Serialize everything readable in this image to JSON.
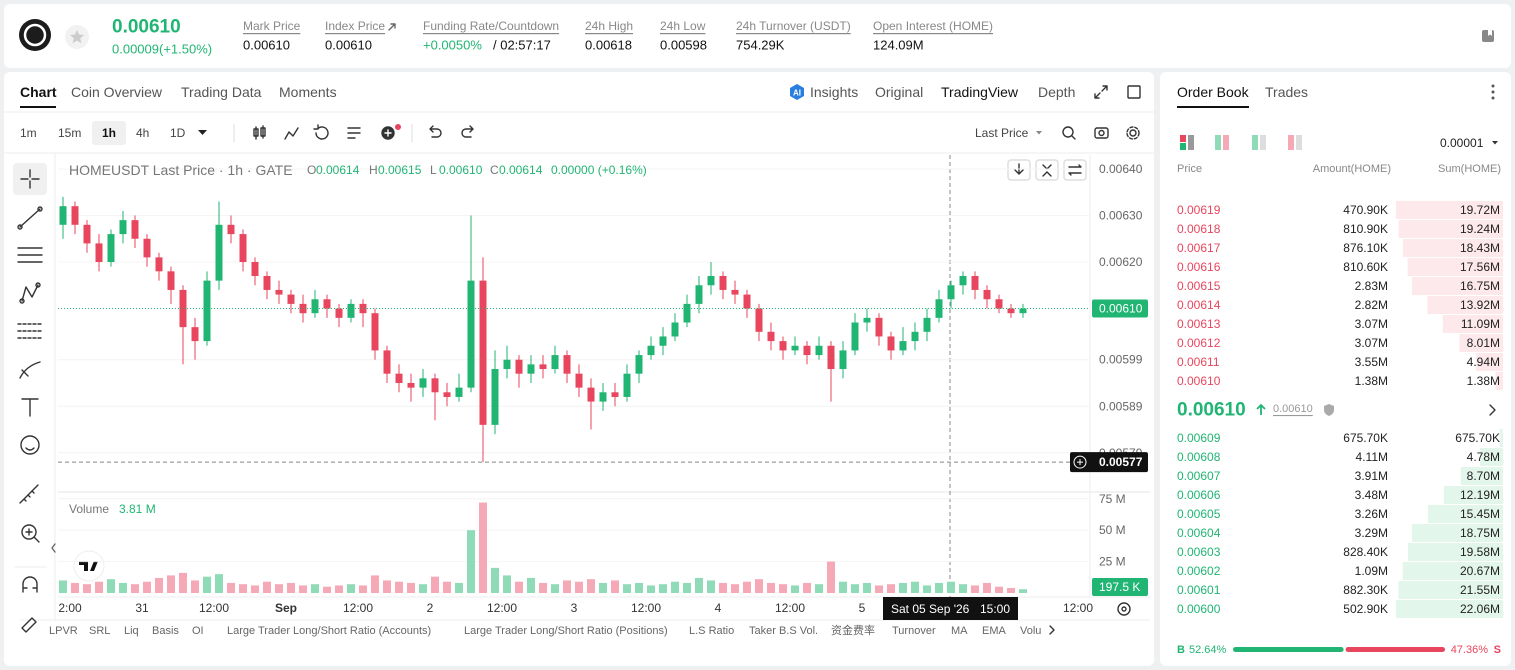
{
  "header": {
    "price": "0.00610",
    "change": "0.00009(+1.50%)",
    "stats": [
      {
        "label": "Mark Price",
        "value": "0.00610"
      },
      {
        "label": "Index Price",
        "value": "0.00610"
      },
      {
        "label": "Funding Rate/Countdown",
        "value": "+0.0050%",
        "countdown": "/ 02:57:17"
      },
      {
        "label": "24h High",
        "value": "0.00618"
      },
      {
        "label": "24h Low",
        "value": "0.00598"
      },
      {
        "label": "24h Turnover (USDT)",
        "value": "754.29K"
      },
      {
        "label": "Open Interest (HOME)",
        "value": "124.09M"
      }
    ]
  },
  "chart_tabs": [
    "Chart",
    "Coin Overview",
    "Trading Data",
    "Moments"
  ],
  "view_tabs": [
    "Insights",
    "Original",
    "TradingView",
    "Depth"
  ],
  "intervals": [
    "1m",
    "15m",
    "1h",
    "4h",
    "1D"
  ],
  "price_source": "Last Price",
  "chart_legend": {
    "title": "HOMEUSDT Last Price · 1h · GATE",
    "items": [
      {
        "key": "O",
        "value": "0.00614"
      },
      {
        "key": "H",
        "value": "0.00615"
      },
      {
        "key": "L",
        "value": "0.00610"
      },
      {
        "key": "C",
        "value": "0.00614"
      }
    ],
    "change": "0.00000 (+0.16%)"
  },
  "chart_data": {
    "type": "candlestick",
    "up_color": "#21b573",
    "down_color": "#e8465e",
    "volume_up_color": "#8fdbb8",
    "volume_down_color": "#f5a9b6",
    "ylim": [
      0.00571,
      0.00643
    ],
    "yticks": [
      {
        "value": 0.0064,
        "label": "0.00640"
      },
      {
        "value": 0.0063,
        "label": "0.00630"
      },
      {
        "value": 0.0062,
        "label": "0.00620"
      },
      {
        "value": 0.00599,
        "label": "0.00599"
      },
      {
        "value": 0.00589,
        "label": "0.00589"
      },
      {
        "value": 0.00579,
        "label": "0.00579"
      }
    ],
    "last_price": {
      "value": 0.0061,
      "label": "0.00610"
    },
    "crosshair_price": {
      "value": 0.00577,
      "label": "0.00577"
    },
    "crosshair_date": "Sat 05 Sep '26",
    "crosshair_time": "15:00",
    "x_labels": [
      "2:00",
      "31",
      "12:00",
      "Sep",
      "12:00",
      "2",
      "12:00",
      "3",
      "12:00",
      "4",
      "12:00",
      "5",
      null,
      null,
      "12:00"
    ],
    "candles": [
      [
        0.00628,
        0.00634,
        0.00625,
        0.00632
      ],
      [
        0.00632,
        0.00633,
        0.00626,
        0.00628
      ],
      [
        0.00628,
        0.00629,
        0.00622,
        0.00624
      ],
      [
        0.00624,
        0.00626,
        0.00618,
        0.0062
      ],
      [
        0.0062,
        0.00627,
        0.00619,
        0.00626
      ],
      [
        0.00626,
        0.00631,
        0.00624,
        0.00629
      ],
      [
        0.00629,
        0.0063,
        0.00623,
        0.00625
      ],
      [
        0.00625,
        0.00626,
        0.00619,
        0.00621
      ],
      [
        0.00621,
        0.00622,
        0.00616,
        0.00618
      ],
      [
        0.00618,
        0.00619,
        0.00611,
        0.00614
      ],
      [
        0.00614,
        0.00615,
        0.00598,
        0.00606
      ],
      [
        0.00606,
        0.00608,
        0.00599,
        0.00603
      ],
      [
        0.00603,
        0.00618,
        0.00602,
        0.00616
      ],
      [
        0.00616,
        0.00633,
        0.00614,
        0.00628
      ],
      [
        0.00628,
        0.0063,
        0.00624,
        0.00626
      ],
      [
        0.00626,
        0.00627,
        0.00618,
        0.0062
      ],
      [
        0.0062,
        0.00621,
        0.00615,
        0.00617
      ],
      [
        0.00617,
        0.00618,
        0.00612,
        0.00614
      ],
      [
        0.00614,
        0.00616,
        0.00611,
        0.00613
      ],
      [
        0.00613,
        0.00614,
        0.00609,
        0.00611
      ],
      [
        0.00611,
        0.00613,
        0.00607,
        0.00609
      ],
      [
        0.00609,
        0.00614,
        0.00608,
        0.00612
      ],
      [
        0.00612,
        0.00613,
        0.00608,
        0.0061
      ],
      [
        0.0061,
        0.00611,
        0.00606,
        0.00608
      ],
      [
        0.00608,
        0.00612,
        0.00607,
        0.00611
      ],
      [
        0.00611,
        0.00612,
        0.00606,
        0.00609
      ],
      [
        0.00609,
        0.0061,
        0.00599,
        0.00601
      ],
      [
        0.00601,
        0.00602,
        0.00594,
        0.00596
      ],
      [
        0.00596,
        0.00598,
        0.00592,
        0.00594
      ],
      [
        0.00594,
        0.00596,
        0.0059,
        0.00593
      ],
      [
        0.00593,
        0.00597,
        0.00591,
        0.00595
      ],
      [
        0.00595,
        0.00596,
        0.00586,
        0.00592
      ],
      [
        0.00592,
        0.00594,
        0.00589,
        0.00591
      ],
      [
        0.00591,
        0.00596,
        0.0059,
        0.00593
      ],
      [
        0.00593,
        0.0063,
        0.00592,
        0.00616
      ],
      [
        0.00616,
        0.00621,
        0.00577,
        0.00585
      ],
      [
        0.00585,
        0.00601,
        0.00583,
        0.00597
      ],
      [
        0.00597,
        0.00602,
        0.00595,
        0.00599
      ],
      [
        0.00599,
        0.006,
        0.00593,
        0.00596
      ],
      [
        0.00596,
        0.006,
        0.00594,
        0.00598
      ],
      [
        0.00598,
        0.006,
        0.00595,
        0.00597
      ],
      [
        0.00597,
        0.00602,
        0.00596,
        0.006
      ],
      [
        0.006,
        0.00601,
        0.00594,
        0.00596
      ],
      [
        0.00596,
        0.00598,
        0.00591,
        0.00593
      ],
      [
        0.00593,
        0.00595,
        0.00584,
        0.0059
      ],
      [
        0.0059,
        0.00594,
        0.00588,
        0.00592
      ],
      [
        0.00592,
        0.00594,
        0.00589,
        0.00591
      ],
      [
        0.00591,
        0.00598,
        0.0059,
        0.00596
      ],
      [
        0.00596,
        0.00601,
        0.00594,
        0.006
      ],
      [
        0.006,
        0.00604,
        0.00599,
        0.00602
      ],
      [
        0.00602,
        0.00606,
        0.006,
        0.00604
      ],
      [
        0.00604,
        0.00609,
        0.00603,
        0.00607
      ],
      [
        0.00607,
        0.00613,
        0.00606,
        0.00611
      ],
      [
        0.00611,
        0.00617,
        0.00609,
        0.00615
      ],
      [
        0.00615,
        0.0062,
        0.00613,
        0.00617
      ],
      [
        0.00617,
        0.00618,
        0.00612,
        0.00614
      ],
      [
        0.00614,
        0.00616,
        0.00611,
        0.00613
      ],
      [
        0.00613,
        0.00614,
        0.00608,
        0.0061
      ],
      [
        0.0061,
        0.00611,
        0.00603,
        0.00605
      ],
      [
        0.00605,
        0.00607,
        0.00601,
        0.00603
      ],
      [
        0.00603,
        0.00604,
        0.00599,
        0.00601
      ],
      [
        0.00601,
        0.00604,
        0.006,
        0.00602
      ],
      [
        0.00602,
        0.00603,
        0.00598,
        0.006
      ],
      [
        0.006,
        0.00604,
        0.00599,
        0.00602
      ],
      [
        0.00602,
        0.00603,
        0.0059,
        0.00597
      ],
      [
        0.00597,
        0.00603,
        0.00595,
        0.00601
      ],
      [
        0.00601,
        0.00609,
        0.006,
        0.00607
      ],
      [
        0.00607,
        0.0061,
        0.00605,
        0.00608
      ],
      [
        0.00608,
        0.00609,
        0.00602,
        0.00604
      ],
      [
        0.00604,
        0.00605,
        0.00599,
        0.00601
      ],
      [
        0.00601,
        0.00606,
        0.006,
        0.00603
      ],
      [
        0.00603,
        0.00607,
        0.00601,
        0.00605
      ],
      [
        0.00605,
        0.0061,
        0.00603,
        0.00608
      ],
      [
        0.00608,
        0.00614,
        0.00607,
        0.00612
      ],
      [
        0.00612,
        0.00616,
        0.0061,
        0.00615
      ],
      [
        0.00615,
        0.00618,
        0.00613,
        0.00617
      ],
      [
        0.00617,
        0.00618,
        0.00612,
        0.00614
      ],
      [
        0.00614,
        0.00615,
        0.0061,
        0.00612
      ],
      [
        0.00612,
        0.00613,
        0.00609,
        0.0061
      ],
      [
        0.0061,
        0.00611,
        0.00608,
        0.00609
      ],
      [
        0.00609,
        0.00611,
        0.00608,
        0.0061
      ]
    ],
    "volume_title": "Volume",
    "volume_current": "3.81 M",
    "volume_last_tag": "197.5 K",
    "vlim": [
      0,
      78
    ],
    "vticks": [
      {
        "value": 75,
        "label": "75 M"
      },
      {
        "value": 50,
        "label": "50 M"
      },
      {
        "value": 25,
        "label": "25 M"
      }
    ],
    "volume": [
      10,
      8,
      7,
      9,
      11,
      8,
      7,
      9,
      12,
      14,
      16,
      10,
      13,
      15,
      8,
      7,
      6,
      9,
      7,
      8,
      6,
      7,
      5,
      6,
      7,
      6,
      14,
      10,
      9,
      8,
      7,
      13,
      9,
      8,
      50,
      72,
      20,
      14,
      9,
      12,
      8,
      7,
      10,
      9,
      11,
      8,
      10,
      7,
      8,
      6,
      7,
      9,
      8,
      12,
      10,
      8,
      7,
      9,
      11,
      8,
      7,
      6,
      8,
      7,
      25,
      9,
      7,
      8,
      6,
      7,
      8,
      9,
      6,
      8,
      9,
      7,
      6,
      8,
      5,
      4,
      3
    ]
  },
  "indicators": [
    "LPVR",
    "SRL",
    "Liq",
    "Basis",
    "OI",
    "Large Trader Long/Short Ratio (Accounts)",
    "Large Trader Long/Short Ratio (Positions)",
    "L.S Ratio",
    "Taker B.S Vol.",
    "资金费率",
    "Turnover",
    "MA",
    "EMA",
    "Volu"
  ],
  "order_book": {
    "tabs": [
      "Order Book",
      "Trades"
    ],
    "precision": "0.00001",
    "columns": [
      "Price",
      "Amount(HOME)",
      "Sum(HOME)"
    ],
    "asks": [
      {
        "price": "0.00619",
        "amount": "470.90K",
        "sum": "19.72M"
      },
      {
        "price": "0.00618",
        "amount": "810.90K",
        "sum": "19.24M"
      },
      {
        "price": "0.00617",
        "amount": "876.10K",
        "sum": "18.43M"
      },
      {
        "price": "0.00616",
        "amount": "810.60K",
        "sum": "17.56M"
      },
      {
        "price": "0.00615",
        "amount": "2.83M",
        "sum": "16.75M"
      },
      {
        "price": "0.00614",
        "amount": "2.82M",
        "sum": "13.92M"
      },
      {
        "price": "0.00613",
        "amount": "3.07M",
        "sum": "11.09M"
      },
      {
        "price": "0.00612",
        "amount": "3.07M",
        "sum": "8.01M"
      },
      {
        "price": "0.00611",
        "amount": "3.55M",
        "sum": "4.94M"
      },
      {
        "price": "0.00610",
        "amount": "1.38M",
        "sum": "1.38M"
      }
    ],
    "mid_price": "0.00610",
    "mark_price": "0.00610",
    "bids": [
      {
        "price": "0.00609",
        "amount": "675.70K",
        "sum": "675.70K"
      },
      {
        "price": "0.00608",
        "amount": "4.11M",
        "sum": "4.78M"
      },
      {
        "price": "0.00607",
        "amount": "3.91M",
        "sum": "8.70M"
      },
      {
        "price": "0.00606",
        "amount": "3.48M",
        "sum": "12.19M"
      },
      {
        "price": "0.00605",
        "amount": "3.26M",
        "sum": "15.45M"
      },
      {
        "price": "0.00604",
        "amount": "3.29M",
        "sum": "18.75M"
      },
      {
        "price": "0.00603",
        "amount": "828.40K",
        "sum": "19.58M"
      },
      {
        "price": "0.00602",
        "amount": "1.09M",
        "sum": "20.67M"
      },
      {
        "price": "0.00601",
        "amount": "882.30K",
        "sum": "21.55M"
      },
      {
        "price": "0.00600",
        "amount": "502.90K",
        "sum": "22.06M"
      }
    ],
    "buy_key": "B",
    "buy_percent": 52.64,
    "buy_label": "52.64%",
    "sell_percent": 47.36,
    "sell_label": "47.36%",
    "sell_key": "S"
  }
}
